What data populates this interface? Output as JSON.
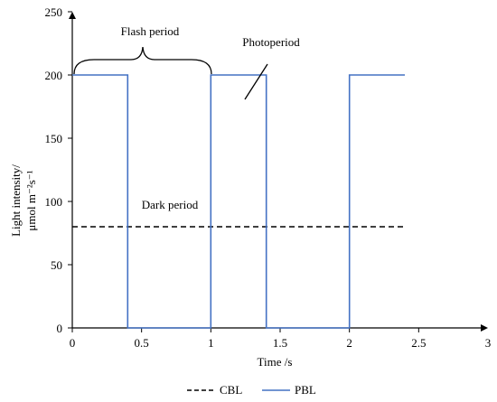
{
  "chart_data": {
    "type": "line",
    "xlabel": "Time /s",
    "ylabel_line1": "Light intensity/",
    "ylabel_line2": "μmol m⁻²s⁻¹",
    "xlim": [
      0,
      3
    ],
    "ylim": [
      0,
      250
    ],
    "x_ticks": [
      0,
      0.5,
      1,
      1.5,
      2,
      2.5,
      3
    ],
    "y_ticks": [
      0,
      50,
      100,
      150,
      200,
      250
    ],
    "grid": false,
    "legend_position": "bottom",
    "series": [
      {
        "name": "CBL",
        "style": "dashed",
        "color": "#000000",
        "x": [
          0,
          2.4
        ],
        "y": [
          80,
          80
        ]
      },
      {
        "name": "PBL",
        "style": "solid",
        "color": "#4472c4",
        "x": [
          0,
          0.4,
          0.4,
          1,
          1,
          1.4,
          1.4,
          2,
          2,
          2.4
        ],
        "y": [
          200,
          200,
          0,
          0,
          200,
          200,
          0,
          0,
          200,
          200
        ]
      }
    ],
    "annotations": {
      "flash_period": "Flash period",
      "photoperiod": "Photoperiod",
      "dark_period": "Dark period"
    }
  }
}
